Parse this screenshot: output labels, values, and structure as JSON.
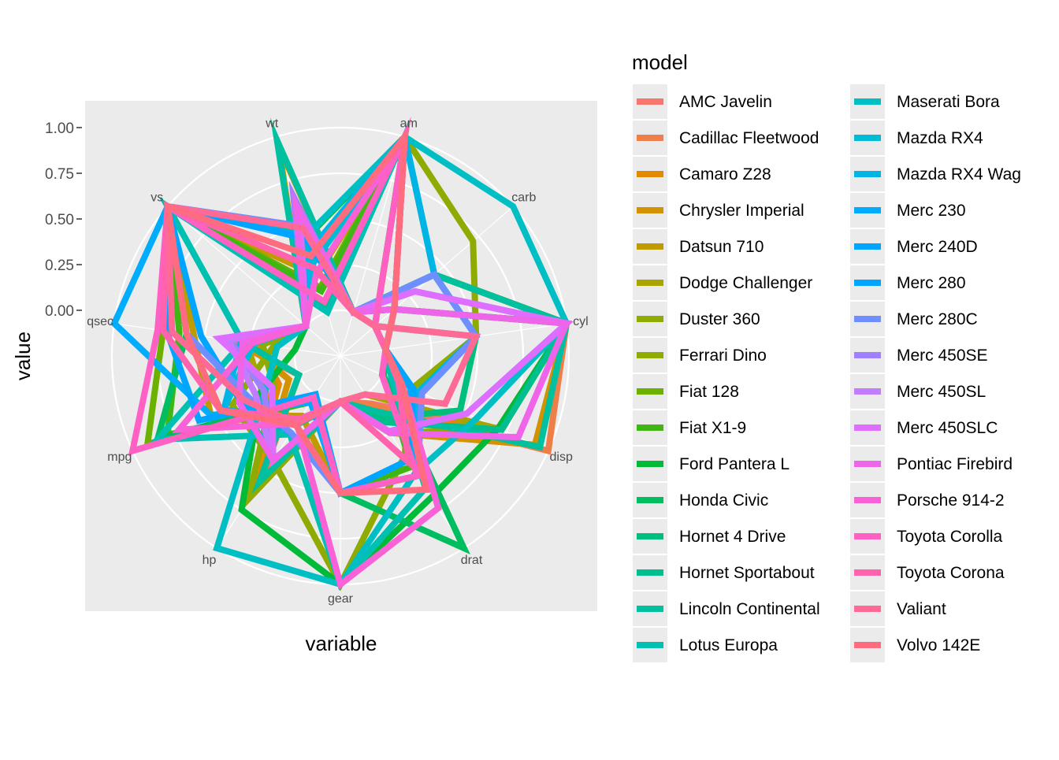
{
  "chart_data": {
    "type": "radar",
    "xlabel": "variable",
    "ylabel": "value",
    "y_ticks": [
      "1.00",
      "0.75",
      "0.50",
      "0.25",
      "0.00"
    ],
    "y_tick_values": [
      1.0,
      0.75,
      0.5,
      0.25,
      0.0
    ],
    "ylim": [
      -0.25,
      1.0
    ],
    "categories": [
      "am",
      "carb",
      "cyl",
      "disp",
      "drat",
      "gear",
      "hp",
      "mpg",
      "qsec",
      "vs",
      "wt"
    ],
    "legend": {
      "title": "model",
      "placement": "right"
    },
    "series": [
      {
        "name": "AMC Javelin",
        "color": "#F8766D",
        "values": [
          0,
          0.14,
          1,
          0.72,
          0.06,
          0,
          0.43,
          0.2,
          0.35,
          0,
          0.47
        ]
      },
      {
        "name": "Cadillac Fleetwood",
        "color": "#EF7F49",
        "values": [
          0,
          0.43,
          1,
          1,
          0.07,
          0,
          0.54,
          0,
          0.36,
          0,
          0.95
        ]
      },
      {
        "name": "Camaro Z28",
        "color": "#E38900",
        "values": [
          0,
          0.43,
          1,
          0.7,
          0.15,
          0,
          0.68,
          0.12,
          0.21,
          0,
          0.5
        ]
      },
      {
        "name": "Chrysler Imperial",
        "color": "#D39200",
        "values": [
          0,
          0.43,
          1,
          0.92,
          0.25,
          0,
          0.58,
          0.06,
          0.28,
          0,
          0.95
        ]
      },
      {
        "name": "Datsun 710",
        "color": "#C09B00",
        "values": [
          1,
          0,
          0,
          0.06,
          0.53,
          0.5,
          0.14,
          0.53,
          0.56,
          1,
          0.21
        ]
      },
      {
        "name": "Dodge Challenger",
        "color": "#A9A400",
        "values": [
          0,
          0.14,
          1,
          0.72,
          0,
          0,
          0.43,
          0.22,
          0.27,
          0,
          0.49
        ]
      },
      {
        "name": "Duster 360",
        "color": "#8FAA00",
        "values": [
          0,
          0.43,
          1,
          0.72,
          0.25,
          0,
          0.68,
          0.15,
          0.18,
          0,
          0.51
        ]
      },
      {
        "name": "Ferrari Dino",
        "color": "#8FAA00",
        "values": [
          1,
          0.71,
          0.5,
          0.18,
          0.4,
          1,
          0.43,
          0.4,
          0.12,
          0,
          0.28
        ]
      },
      {
        "name": "Fiat 128",
        "color": "#6CB100",
        "values": [
          1,
          0,
          0,
          0.01,
          0.47,
          0.5,
          0.04,
          0.91,
          0.73,
          1,
          0.14
        ]
      },
      {
        "name": "Fiat X1-9",
        "color": "#3FB614",
        "values": [
          1,
          0,
          0,
          0.01,
          0.47,
          0.5,
          0.05,
          0.79,
          0.64,
          1,
          0.12
        ]
      },
      {
        "name": "Ford Pantera L",
        "color": "#00BA38",
        "values": [
          1,
          0.43,
          1,
          0.7,
          0.67,
          1,
          0.75,
          0.23,
          0,
          0,
          0.42
        ]
      },
      {
        "name": "Honda Civic",
        "color": "#00BD5F",
        "values": [
          1,
          0.14,
          0,
          0.01,
          1,
          0.5,
          0,
          0.85,
          0.6,
          1,
          0.03
        ]
      },
      {
        "name": "Hornet 4 Drive",
        "color": "#00BE7C",
        "values": [
          0,
          0,
          0.5,
          0.47,
          0.15,
          0,
          0.2,
          0.47,
          0.6,
          1,
          0.44
        ]
      },
      {
        "name": "Hornet Sportabout",
        "color": "#00BF8E",
        "values": [
          0,
          0.14,
          1,
          0.72,
          0.18,
          0,
          0.43,
          0.35,
          0.3,
          0,
          0.49
        ]
      },
      {
        "name": "Lincoln Continental",
        "color": "#00C09F",
        "values": [
          0,
          0.43,
          1,
          0.95,
          0.11,
          0,
          0.57,
          0,
          0.29,
          0,
          0.98
        ]
      },
      {
        "name": "Lotus Europa",
        "color": "#00C0B2",
        "values": [
          1,
          0.14,
          0,
          0.06,
          0.61,
          1,
          0.26,
          0.85,
          0.29,
          1,
          0
        ]
      },
      {
        "name": "Maserati Bora",
        "color": "#00BFC4",
        "values": [
          1,
          1,
          1,
          0.57,
          0.51,
          1,
          1,
          0.2,
          0.1,
          0,
          0.43
        ]
      },
      {
        "name": "Mazda RX4",
        "color": "#00BBD6",
        "values": [
          1,
          0.43,
          0.5,
          0.22,
          0.53,
          0.5,
          0.2,
          0.45,
          0.23,
          0,
          0.28
        ]
      },
      {
        "name": "Mazda RX4 Wag",
        "color": "#00B4E5",
        "values": [
          1,
          0.43,
          0.5,
          0.22,
          0.53,
          0.5,
          0.2,
          0.45,
          0.3,
          0,
          0.35
        ]
      },
      {
        "name": "Merc 230",
        "color": "#00ACFC",
        "values": [
          0,
          0.14,
          0,
          0.17,
          0.53,
          0.5,
          0.05,
          0.53,
          1,
          1,
          0.43
        ]
      },
      {
        "name": "Merc 240D",
        "color": "#00A5FF",
        "values": [
          0,
          0.14,
          0,
          0.19,
          0.43,
          0.5,
          0,
          0.6,
          0.71,
          1,
          0.42
        ]
      },
      {
        "name": "Merc 280",
        "color": "#00A5FF",
        "values": [
          0,
          0.43,
          0.5,
          0.24,
          0.53,
          0.5,
          0.25,
          0.35,
          0.52,
          1,
          0.49
        ]
      },
      {
        "name": "Merc 280C",
        "color": "#6F8EFF",
        "values": [
          0,
          0.43,
          0.5,
          0.24,
          0.53,
          0.5,
          0.25,
          0.3,
          0.6,
          1,
          0.49
        ]
      },
      {
        "name": "Merc 450SE",
        "color": "#9F80FF",
        "values": [
          0,
          0.29,
          1,
          0.51,
          0.24,
          0,
          0.43,
          0.21,
          0.36,
          0,
          0.66
        ]
      },
      {
        "name": "Merc 450SL",
        "color": "#C37BFF",
        "values": [
          0,
          0.29,
          1,
          0.51,
          0.24,
          0,
          0.43,
          0.26,
          0.37,
          0,
          0.53
        ]
      },
      {
        "name": "Merc 450SLC",
        "color": "#DE6EFF",
        "values": [
          0,
          0.29,
          1,
          0.51,
          0.24,
          0,
          0.43,
          0.16,
          0.42,
          0,
          0.56
        ]
      },
      {
        "name": "Pontiac Firebird",
        "color": "#EE65E9",
        "values": [
          0,
          0.14,
          1,
          0.82,
          0.25,
          0,
          0.43,
          0.36,
          0.29,
          0,
          0.61
        ]
      },
      {
        "name": "Porsche 914-2",
        "color": "#F961D7",
        "values": [
          1,
          0.14,
          0,
          0.12,
          0.74,
          1,
          0.19,
          0.72,
          0.24,
          0,
          0.22
        ]
      },
      {
        "name": "Toyota Corolla",
        "color": "#FF60C3",
        "values": [
          1,
          0,
          0,
          0,
          0.53,
          0.5,
          0.02,
          1,
          0.76,
          1,
          0.06
        ]
      },
      {
        "name": "Toyota Corona",
        "color": "#FF63AD",
        "values": [
          0,
          0,
          0,
          0.1,
          0.44,
          0,
          0.16,
          0.47,
          0.73,
          1,
          0.25
        ]
      },
      {
        "name": "Valiant",
        "color": "#FF6996",
        "values": [
          0,
          0,
          0.5,
          0.38,
          0,
          0,
          0.19,
          0.33,
          0.68,
          1,
          0.48
        ]
      },
      {
        "name": "Volvo 142E",
        "color": "#FF6C80",
        "values": [
          1,
          0.14,
          0,
          0.12,
          0.62,
          0.5,
          0.2,
          0.47,
          0.6,
          1,
          0.32
        ]
      }
    ]
  }
}
